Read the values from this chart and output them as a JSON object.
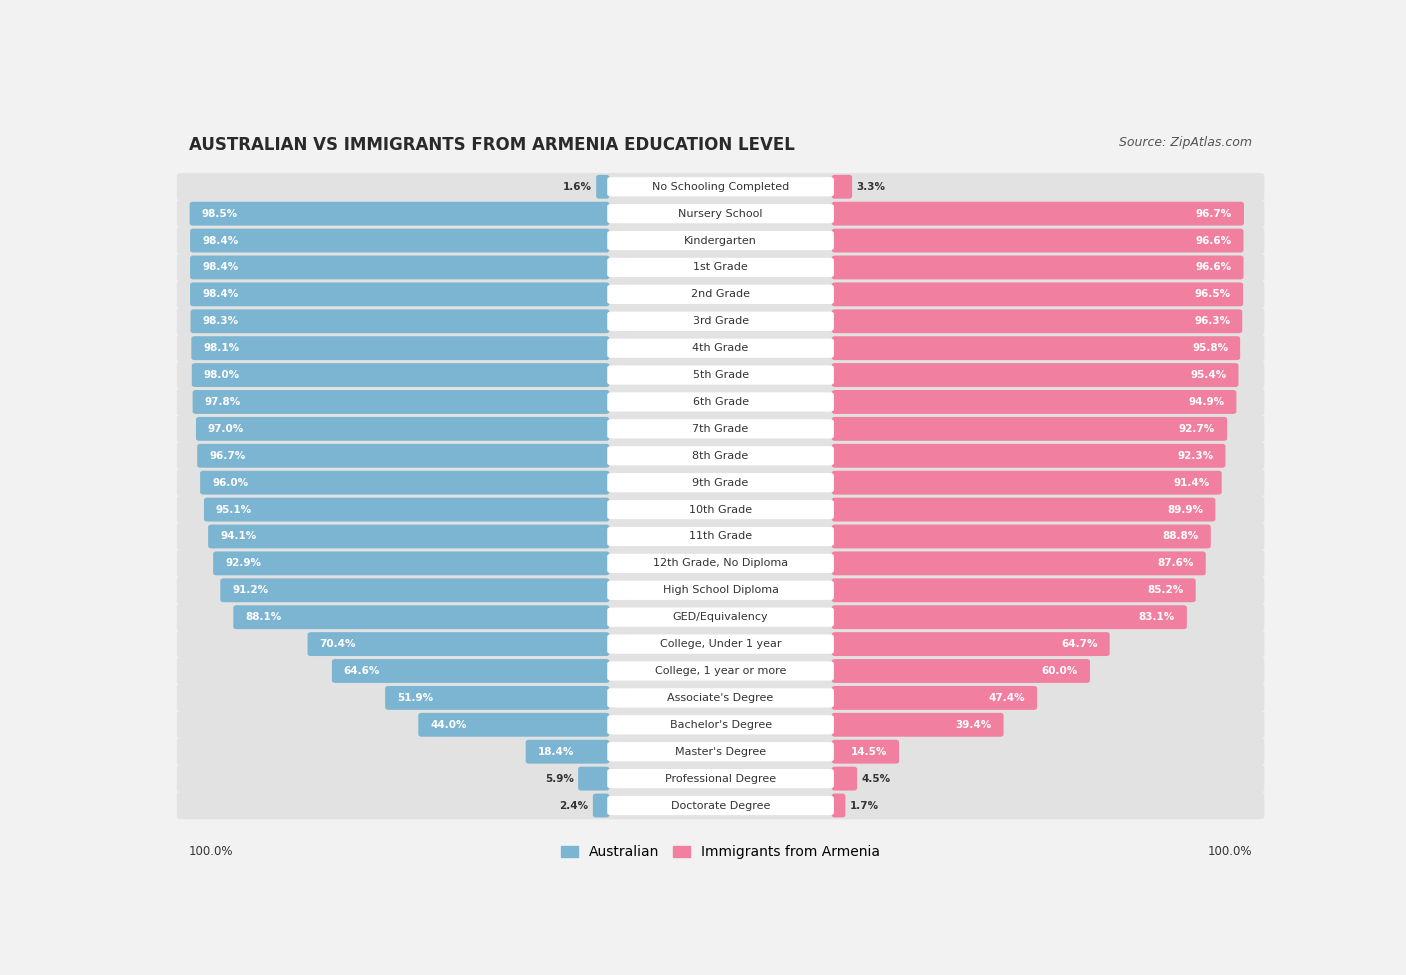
{
  "title": "AUSTRALIAN VS IMMIGRANTS FROM ARMENIA EDUCATION LEVEL",
  "source": "Source: ZipAtlas.com",
  "categories": [
    "No Schooling Completed",
    "Nursery School",
    "Kindergarten",
    "1st Grade",
    "2nd Grade",
    "3rd Grade",
    "4th Grade",
    "5th Grade",
    "6th Grade",
    "7th Grade",
    "8th Grade",
    "9th Grade",
    "10th Grade",
    "11th Grade",
    "12th Grade, No Diploma",
    "High School Diploma",
    "GED/Equivalency",
    "College, Under 1 year",
    "College, 1 year or more",
    "Associate's Degree",
    "Bachelor's Degree",
    "Master's Degree",
    "Professional Degree",
    "Doctorate Degree"
  ],
  "australian": [
    1.6,
    98.5,
    98.4,
    98.4,
    98.4,
    98.3,
    98.1,
    98.0,
    97.8,
    97.0,
    96.7,
    96.0,
    95.1,
    94.1,
    92.9,
    91.2,
    88.1,
    70.4,
    64.6,
    51.9,
    44.0,
    18.4,
    5.9,
    2.4
  ],
  "armenia": [
    3.3,
    96.7,
    96.6,
    96.6,
    96.5,
    96.3,
    95.8,
    95.4,
    94.9,
    92.7,
    92.3,
    91.4,
    89.9,
    88.8,
    87.6,
    85.2,
    83.1,
    64.7,
    60.0,
    47.4,
    39.4,
    14.5,
    4.5,
    1.7
  ],
  "aus_color": "#7cb5d2",
  "arm_color": "#f07fa0",
  "bg_color": "#f2f2f2",
  "row_bg_color": "#e2e2e2",
  "title_fontsize": 12,
  "source_fontsize": 9,
  "label_fontsize": 8,
  "value_fontsize": 7.5,
  "legend_fontsize": 10
}
